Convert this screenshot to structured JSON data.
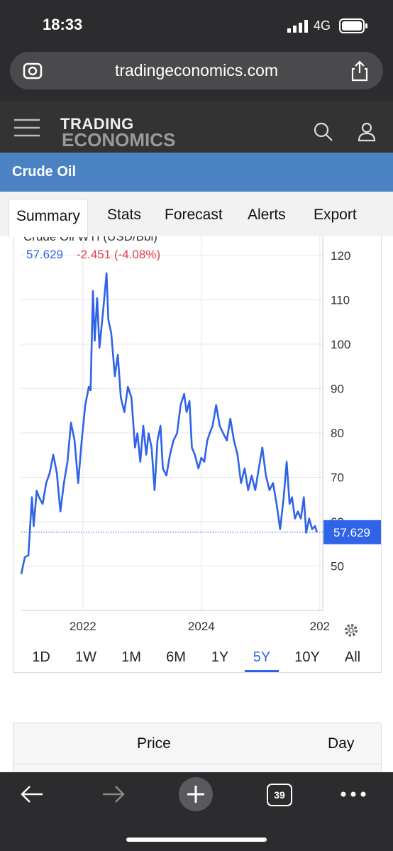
{
  "status": {
    "time": "18:33",
    "network": "4G"
  },
  "browser": {
    "url": "tradingeconomics.com",
    "tab_count": "39"
  },
  "site": {
    "logo_top": "TRADING",
    "logo_bottom": "ECONOMICS"
  },
  "page_title": "Crude Oil",
  "tabs": [
    "Summary",
    "Stats",
    "Forecast",
    "Alerts",
    "Export"
  ],
  "chart_data": {
    "type": "line",
    "title": "Crude Oil WTI (USD/Bbl)",
    "change": "-2.451 (-4.08%)",
    "change_color": "#e0424a",
    "x": [
      2020.96,
      2021.02,
      2021.08,
      2021.14,
      2021.17,
      2021.22,
      2021.26,
      2021.32,
      2021.38,
      2021.44,
      2021.5,
      2021.56,
      2021.62,
      2021.68,
      2021.74,
      2021.8,
      2021.86,
      2021.92,
      2021.98,
      2022.04,
      2022.1,
      2022.13,
      2022.17,
      2022.2,
      2022.24,
      2022.28,
      2022.34,
      2022.4,
      2022.43,
      2022.48,
      2022.54,
      2022.59,
      2022.64,
      2022.7,
      2022.76,
      2022.82,
      2022.88,
      2022.92,
      2022.97,
      2023.02,
      2023.07,
      2023.11,
      2023.16,
      2023.21,
      2023.26,
      2023.31,
      2023.35,
      2023.41,
      2023.47,
      2023.53,
      2023.59,
      2023.65,
      2023.71,
      2023.75,
      2023.8,
      2023.84,
      2023.89,
      2023.95,
      2024.0,
      2024.05,
      2024.1,
      2024.14,
      2024.19,
      2024.25,
      2024.31,
      2024.37,
      2024.43,
      2024.49,
      2024.55,
      2024.61,
      2024.67,
      2024.73,
      2024.79,
      2024.85,
      2024.91,
      2024.97,
      2025.03,
      2025.09,
      2025.15,
      2025.21,
      2025.27,
      2025.33,
      2025.39,
      2025.44,
      2025.49,
      2025.53,
      2025.58,
      2025.63,
      2025.68,
      2025.73,
      2025.77,
      2025.82,
      2025.87,
      2025.92,
      2025.95
    ],
    "series": [
      {
        "color": "#2f63e8",
        "values": [
          48.2,
          52,
          52.4,
          65.5,
          59,
          67,
          65.5,
          64,
          68.7,
          71,
          75.1,
          71,
          62.3,
          68.7,
          73.5,
          82.3,
          78.3,
          68.7,
          78.3,
          86.3,
          90.4,
          89.6,
          112,
          100.8,
          110.4,
          99.2,
          107.2,
          116,
          105.6,
          102.4,
          92.8,
          97.6,
          88,
          84.7,
          90.4,
          88,
          76.7,
          79.9,
          73.5,
          81.6,
          75.1,
          79.9,
          76.7,
          67.1,
          78.3,
          81.6,
          72,
          70.4,
          75.1,
          78.3,
          79.9,
          86.3,
          88.8,
          84.7,
          87.2,
          76.7,
          75.1,
          72,
          74.4,
          73.5,
          78.3,
          79.9,
          81.6,
          86.3,
          81.6,
          79.9,
          78.3,
          83.2,
          78.3,
          75.1,
          68.7,
          72,
          67.1,
          70.4,
          67.1,
          72,
          76.7,
          70.4,
          67.1,
          68.7,
          64,
          58.3,
          65.5,
          73.5,
          64,
          65.5,
          60.7,
          62.3,
          60.7,
          65.5,
          57.5,
          60.7,
          58.3,
          59,
          57.629
        ]
      }
    ],
    "xlim": [
      2020.96,
      2026.05
    ],
    "xticks": [
      2022,
      2024,
      {
        "value": 2026,
        "label": "202"
      }
    ],
    "ylim": [
      40,
      124
    ],
    "yticks": [
      50,
      60,
      70,
      80,
      90,
      100,
      110,
      120
    ],
    "grid": true
  },
  "ranges": [
    "1D",
    "1W",
    "1M",
    "6M",
    "1Y",
    "5Y",
    "10Y",
    "All"
  ],
  "selected_range": 5,
  "table": {
    "headers": [
      "Price",
      "Day"
    ]
  }
}
